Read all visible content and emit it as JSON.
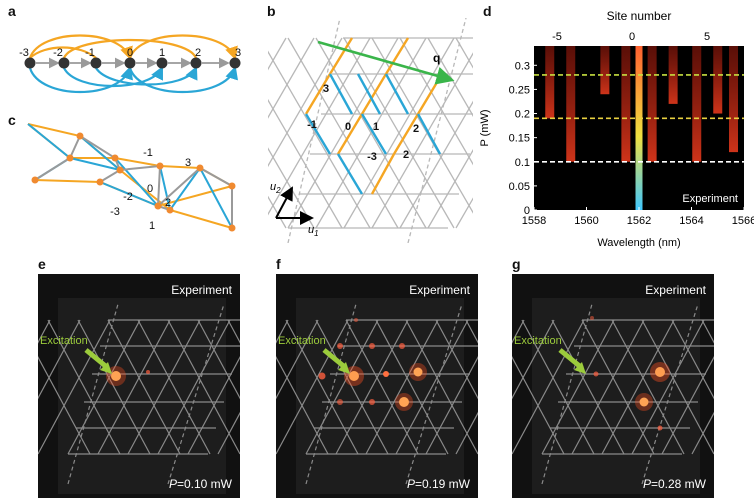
{
  "labels": {
    "a": "a",
    "b": "b",
    "c": "c",
    "d": "d",
    "e": "e",
    "f": "f",
    "g": "g"
  },
  "panel_a": {
    "sites": [
      "-3",
      "-2",
      "-1",
      "0",
      "1",
      "2",
      "3"
    ]
  },
  "panel_b": {
    "vector_q": "q",
    "u1": "u",
    "u1_sub": "1",
    "u2": "u",
    "u2_sub": "2",
    "site_labels": [
      "3",
      "-1",
      "0",
      "1",
      "2",
      "-3",
      "2"
    ]
  },
  "panel_c": {
    "site_labels": [
      "-1",
      "3",
      "-2",
      "0",
      "-3",
      "2",
      "1"
    ]
  },
  "panel_d": {
    "top_axis_title": "Site number",
    "top_ticks": [
      "-5",
      "0",
      "5"
    ],
    "ylabel": "P (mW)",
    "y_ticks": [
      "0",
      "0.05",
      "0.1",
      "0.15",
      "0.2",
      "0.25",
      "0.3"
    ],
    "xlabel": "Wavelength (nm)",
    "x_ticks": [
      "1558",
      "1560",
      "1562",
      "1564",
      "1566"
    ],
    "tag": "Experiment",
    "thresholds_mW": [
      0.1,
      0.19,
      0.28
    ],
    "threshold_colors": [
      "#ffffff",
      "#e8d040",
      "#c8e040"
    ]
  },
  "chart_data": {
    "type": "heatmap",
    "title": "",
    "xlabel": "Wavelength (nm)",
    "ylabel": "P (mW)",
    "x2label": "Site number",
    "xlim": [
      1558,
      1566
    ],
    "ylim": [
      0,
      0.34
    ],
    "x_ticks": [
      1558,
      1560,
      1562,
      1564,
      1566
    ],
    "y_ticks": [
      0,
      0.05,
      0.1,
      0.15,
      0.2,
      0.25,
      0.3
    ],
    "x2_ticks": [
      -5,
      0,
      5
    ],
    "dashed_levels_mW": [
      0.1,
      0.19,
      0.28
    ],
    "bright_lines": [
      {
        "wavelength_nm": 1558.6,
        "onset_mW": 0.19
      },
      {
        "wavelength_nm": 1559.4,
        "onset_mW": 0.1
      },
      {
        "wavelength_nm": 1560.7,
        "onset_mW": 0.24
      },
      {
        "wavelength_nm": 1561.5,
        "onset_mW": 0.1
      },
      {
        "wavelength_nm": 1562.0,
        "onset_mW": 0.0
      },
      {
        "wavelength_nm": 1562.5,
        "onset_mW": 0.1
      },
      {
        "wavelength_nm": 1563.3,
        "onset_mW": 0.22
      },
      {
        "wavelength_nm": 1564.2,
        "onset_mW": 0.1
      },
      {
        "wavelength_nm": 1565.0,
        "onset_mW": 0.2
      },
      {
        "wavelength_nm": 1565.6,
        "onset_mW": 0.12
      }
    ]
  },
  "panel_e": {
    "tag": "Experiment",
    "excitation": "Excitation",
    "power_symbol": "P",
    "power": "=0.10 mW"
  },
  "panel_f": {
    "tag": "Experiment",
    "excitation": "Excitation",
    "power_symbol": "P",
    "power": "=0.19 mW"
  },
  "panel_g": {
    "tag": "Experiment",
    "excitation": "Excitation",
    "power_symbol": "P",
    "power": "=0.28 mW"
  },
  "colors": {
    "orange": "#f5a623",
    "blue": "#2aa6d6",
    "gray": "#9a9a9a",
    "green": "#3ab54a",
    "lime": "#9ccc3c"
  }
}
